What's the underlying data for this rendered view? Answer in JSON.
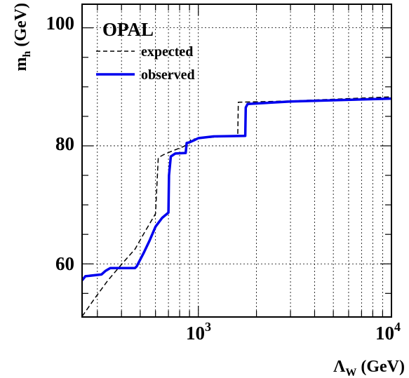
{
  "chart_data": {
    "type": "line",
    "title": "OPAL",
    "xlabel": {
      "main": "Λ",
      "sub": "W",
      "unit": "(GeV)"
    },
    "ylabel": {
      "main": "m",
      "sub": "h",
      "unit": "(GeV)"
    },
    "xscale": "log",
    "xlim": [
      250,
      10000
    ],
    "ylim": [
      51,
      104
    ],
    "grid": true,
    "legend_position": "top-left",
    "x_ticks": [
      {
        "value": 1000,
        "base": "10",
        "exp": "3"
      },
      {
        "value": 10000,
        "base": "10",
        "exp": "4"
      }
    ],
    "y_ticks": [
      {
        "value": 60,
        "label": "60"
      },
      {
        "value": 80,
        "label": "80"
      },
      {
        "value": 100,
        "label": "100"
      }
    ],
    "series": [
      {
        "name": "expected",
        "style": "dashed",
        "color": "#000000",
        "x": [
          250,
          290,
          340,
          410,
          470,
          530,
          600,
          620,
          660,
          730,
          840,
          900,
          910,
          1000,
          1400,
          1600,
          1610,
          3000,
          10000
        ],
        "y": [
          51.1,
          54.1,
          57.2,
          60.3,
          62.5,
          65.5,
          68.5,
          78.0,
          78.5,
          79.1,
          79.9,
          80.5,
          81.0,
          81.3,
          81.6,
          81.7,
          87.4,
          87.6,
          88.3
        ]
      },
      {
        "name": "observed",
        "style": "solid",
        "color": "#0000ee",
        "x": [
          250,
          260,
          315,
          330,
          350,
          470,
          480,
          520,
          560,
          600,
          650,
          700,
          705,
          720,
          760,
          860,
          870,
          900,
          960,
          1000,
          1200,
          1750,
          1760,
          1800,
          3000,
          10000
        ],
        "y": [
          57.2,
          57.9,
          58.2,
          58.8,
          59.3,
          59.3,
          59.6,
          61.8,
          64.0,
          66.3,
          67.8,
          68.7,
          75.0,
          78.2,
          78.7,
          78.8,
          80.5,
          80.6,
          81.0,
          81.3,
          81.6,
          81.7,
          86.5,
          87.1,
          87.5,
          88.0
        ]
      }
    ]
  }
}
